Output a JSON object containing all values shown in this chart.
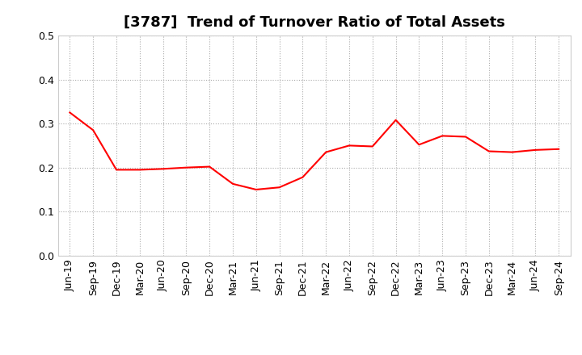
{
  "title": "[3787]  Trend of Turnover Ratio of Total Assets",
  "line_color": "#FF0000",
  "background_color": "#FFFFFF",
  "grid_color": "#AAAAAA",
  "ylim": [
    0.0,
    0.5
  ],
  "yticks": [
    0.0,
    0.1,
    0.2,
    0.3,
    0.4,
    0.5
  ],
  "labels": [
    "Jun-19",
    "Sep-19",
    "Dec-19",
    "Mar-20",
    "Jun-20",
    "Sep-20",
    "Dec-20",
    "Mar-21",
    "Jun-21",
    "Sep-21",
    "Dec-21",
    "Mar-22",
    "Jun-22",
    "Sep-22",
    "Dec-22",
    "Mar-23",
    "Jun-23",
    "Sep-23",
    "Dec-23",
    "Mar-24",
    "Jun-24",
    "Sep-24"
  ],
  "values": [
    0.325,
    0.285,
    0.195,
    0.195,
    0.197,
    0.2,
    0.202,
    0.163,
    0.15,
    0.155,
    0.178,
    0.235,
    0.25,
    0.248,
    0.308,
    0.252,
    0.272,
    0.27,
    0.237,
    0.235,
    0.24,
    0.242
  ],
  "title_fontsize": 13,
  "tick_fontsize": 9,
  "line_width": 1.5
}
